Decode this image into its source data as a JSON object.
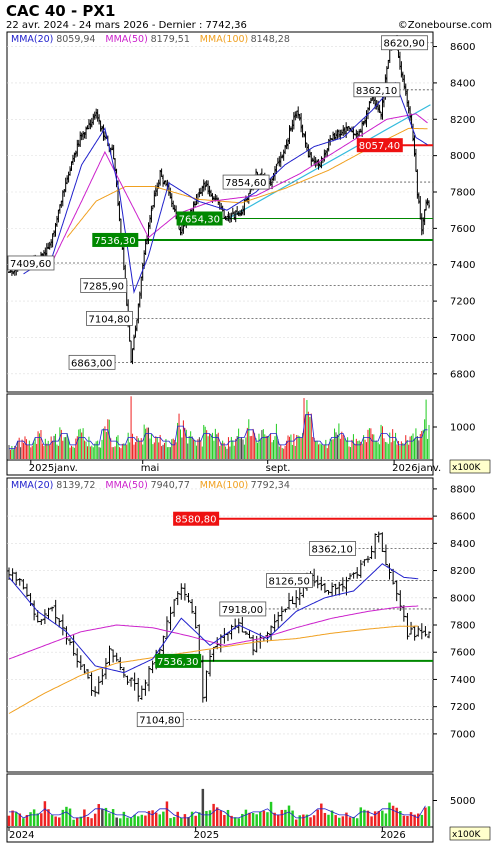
{
  "header": {
    "title": "CAC 40 - PX1",
    "subtitle": "22 avr. 2024 - 24 mars 2026 - Dernier : 7742,36",
    "source": "©Zonebourse.com"
  },
  "colors": {
    "mma20": "#2222cc",
    "mma50": "#cc22cc",
    "mma100": "#f0a020",
    "price": "#000000",
    "resistance": "#ee1111",
    "support": "#008800",
    "trend": "#33bbdd",
    "vol_up": "#22cc22",
    "vol_down": "#ee2222",
    "vol_flat": "#444444"
  },
  "chart_data": [
    {
      "type": "line",
      "name": "daily",
      "legend": [
        {
          "label": "MMA(20)",
          "value": "8059,94",
          "color": "#2222cc"
        },
        {
          "label": "MMA(50)",
          "value": "8179,51",
          "color": "#cc22cc"
        },
        {
          "label": "MMA(100)",
          "value": "8148,28",
          "color": "#f0a020"
        }
      ],
      "ylim": [
        6700,
        8680
      ],
      "yticks": [
        "6800",
        "7000",
        "7200",
        "7400",
        "7600",
        "7800",
        "8000",
        "8200",
        "8400",
        "8600"
      ],
      "x_labels": [
        {
          "text": "2025janv.",
          "i": 15
        },
        {
          "text": "mai",
          "i": 92
        },
        {
          "text": "sept.",
          "i": 178
        },
        {
          "text": "2026janv.",
          "i": 265
        }
      ],
      "n_points": 290,
      "price_path": [
        [
          0,
          7350
        ],
        [
          8,
          7420
        ],
        [
          20,
          7420
        ],
        [
          28,
          7500
        ],
        [
          40,
          7880
        ],
        [
          50,
          8120
        ],
        [
          60,
          8220
        ],
        [
          66,
          8100
        ],
        [
          72,
          8000
        ],
        [
          80,
          7300
        ],
        [
          84,
          6863
        ],
        [
          88,
          7100
        ],
        [
          92,
          7400
        ],
        [
          98,
          7700
        ],
        [
          104,
          7900
        ],
        [
          110,
          7800
        ],
        [
          118,
          7580
        ],
        [
          126,
          7700
        ],
        [
          134,
          7850
        ],
        [
          140,
          7780
        ],
        [
          150,
          7650
        ],
        [
          160,
          7700
        ],
        [
          170,
          7900
        ],
        [
          180,
          7850
        ],
        [
          190,
          8050
        ],
        [
          198,
          8250
        ],
        [
          206,
          8000
        ],
        [
          214,
          7950
        ],
        [
          222,
          8100
        ],
        [
          232,
          8150
        ],
        [
          240,
          8100
        ],
        [
          250,
          8320
        ],
        [
          256,
          8220
        ],
        [
          262,
          8600
        ],
        [
          266,
          8650
        ],
        [
          270,
          8450
        ],
        [
          274,
          8300
        ],
        [
          278,
          8100
        ],
        [
          281,
          7800
        ],
        [
          284,
          7600
        ],
        [
          287,
          7740
        ]
      ],
      "ma20_path": [
        [
          10,
          7350
        ],
        [
          30,
          7450
        ],
        [
          50,
          7950
        ],
        [
          66,
          8150
        ],
        [
          76,
          7800
        ],
        [
          86,
          7250
        ],
        [
          96,
          7450
        ],
        [
          110,
          7850
        ],
        [
          130,
          7750
        ],
        [
          150,
          7700
        ],
        [
          170,
          7800
        ],
        [
          190,
          7950
        ],
        [
          210,
          8050
        ],
        [
          230,
          8100
        ],
        [
          250,
          8250
        ],
        [
          266,
          8400
        ],
        [
          280,
          8100
        ],
        [
          288,
          8060
        ]
      ],
      "ma50_path": [
        [
          10,
          7400
        ],
        [
          30,
          7420
        ],
        [
          50,
          7750
        ],
        [
          66,
          8020
        ],
        [
          80,
          7800
        ],
        [
          96,
          7550
        ],
        [
          116,
          7680
        ],
        [
          140,
          7750
        ],
        [
          170,
          7780
        ],
        [
          200,
          7900
        ],
        [
          230,
          8050
        ],
        [
          260,
          8200
        ],
        [
          280,
          8230
        ],
        [
          288,
          8180
        ]
      ],
      "ma100_path": [
        [
          40,
          7550
        ],
        [
          60,
          7750
        ],
        [
          80,
          7830
        ],
        [
          100,
          7830
        ],
        [
          130,
          7760
        ],
        [
          160,
          7740
        ],
        [
          190,
          7820
        ],
        [
          220,
          7920
        ],
        [
          250,
          8050
        ],
        [
          275,
          8150
        ],
        [
          288,
          8148
        ]
      ],
      "volumes": [
        3,
        5,
        4,
        6,
        4,
        5,
        7,
        4,
        6,
        5,
        4,
        8,
        5,
        4,
        6,
        5,
        7,
        6,
        5,
        4,
        9,
        6,
        5,
        7,
        6,
        4,
        5,
        6,
        8,
        5,
        6,
        7,
        4,
        5,
        6,
        12,
        5,
        4,
        6,
        7,
        5,
        4,
        6,
        5,
        7,
        6,
        4,
        5,
        6,
        8
      ],
      "volume_scale": "x100K",
      "volume_tick": "1000",
      "levels": [
        {
          "label": "8620,90",
          "value": 8620.9,
          "kind": "dotted",
          "i": 257
        },
        {
          "label": "8362,10",
          "value": 8362.1,
          "kind": "dotted",
          "i": 238
        },
        {
          "label": "8057,40",
          "value": 8057.4,
          "kind": "resistance",
          "i": 240
        },
        {
          "label": "7854,60",
          "value": 7854.6,
          "kind": "dotted",
          "i": 148
        },
        {
          "label": "7654,30",
          "value": 7654.3,
          "kind": "thin-green",
          "i": 116
        },
        {
          "label": "7536,30",
          "value": 7536.3,
          "kind": "support",
          "i": 58
        },
        {
          "label": "7409,60",
          "value": 7409.6,
          "kind": "dotted",
          "i": 0
        },
        {
          "label": "7285,90",
          "value": 7285.9,
          "kind": "dotted",
          "i": 50
        },
        {
          "label": "7104,80",
          "value": 7104.8,
          "kind": "dotted",
          "i": 54
        },
        {
          "label": "6863,00",
          "value": 6863.0,
          "kind": "dotted",
          "i": 42
        }
      ],
      "trendline": [
        [
          150,
          7650
        ],
        [
          290,
          8280
        ]
      ]
    },
    {
      "type": "line",
      "name": "weekly",
      "legend": [
        {
          "label": "MMA(20)",
          "value": "8139,72",
          "color": "#2222cc"
        },
        {
          "label": "MMA(50)",
          "value": "7940,77",
          "color": "#cc22cc"
        },
        {
          "label": "MMA(100)",
          "value": "7792,34",
          "color": "#f0a020"
        }
      ],
      "ylim": [
        6720,
        8880
      ],
      "yticks": [
        "7000",
        "7200",
        "7400",
        "7600",
        "7800",
        "8000",
        "8200",
        "8400",
        "8600",
        "8800"
      ],
      "x_labels": [
        {
          "text": "2024",
          "i": 0
        },
        {
          "text": "2025",
          "i": 52
        },
        {
          "text": "2026",
          "i": 104
        }
      ],
      "n_points": 118,
      "price_path": [
        [
          0,
          8200
        ],
        [
          4,
          8100
        ],
        [
          8,
          7800
        ],
        [
          12,
          7950
        ],
        [
          16,
          7700
        ],
        [
          20,
          7500
        ],
        [
          24,
          7300
        ],
        [
          28,
          7600
        ],
        [
          32,
          7450
        ],
        [
          36,
          7300
        ],
        [
          40,
          7500
        ],
        [
          44,
          7800
        ],
        [
          48,
          8100
        ],
        [
          52,
          7800
        ],
        [
          54,
          7300
        ],
        [
          56,
          7600
        ],
        [
          60,
          7750
        ],
        [
          64,
          7800
        ],
        [
          68,
          7650
        ],
        [
          72,
          7750
        ],
        [
          76,
          7900
        ],
        [
          80,
          8000
        ],
        [
          84,
          8150
        ],
        [
          88,
          8050
        ],
        [
          92,
          8100
        ],
        [
          96,
          8150
        ],
        [
          100,
          8300
        ],
        [
          103,
          8500
        ],
        [
          105,
          8250
        ],
        [
          108,
          8050
        ],
        [
          111,
          7750
        ],
        [
          114,
          7742
        ]
      ],
      "ma20_path": [
        [
          0,
          8150
        ],
        [
          8,
          7900
        ],
        [
          16,
          7750
        ],
        [
          24,
          7500
        ],
        [
          32,
          7450
        ],
        [
          40,
          7550
        ],
        [
          48,
          7850
        ],
        [
          56,
          7650
        ],
        [
          64,
          7800
        ],
        [
          72,
          7700
        ],
        [
          80,
          7900
        ],
        [
          88,
          8000
        ],
        [
          96,
          8050
        ],
        [
          104,
          8250
        ],
        [
          110,
          8150
        ],
        [
          114,
          8140
        ]
      ],
      "ma50_path": [
        [
          0,
          7550
        ],
        [
          10,
          7650
        ],
        [
          20,
          7750
        ],
        [
          30,
          7800
        ],
        [
          40,
          7780
        ],
        [
          50,
          7720
        ],
        [
          60,
          7650
        ],
        [
          70,
          7700
        ],
        [
          80,
          7780
        ],
        [
          90,
          7850
        ],
        [
          100,
          7900
        ],
        [
          108,
          7930
        ],
        [
          114,
          7940
        ]
      ],
      "ma100_path": [
        [
          0,
          7150
        ],
        [
          10,
          7300
        ],
        [
          20,
          7430
        ],
        [
          30,
          7520
        ],
        [
          40,
          7560
        ],
        [
          50,
          7600
        ],
        [
          60,
          7640
        ],
        [
          70,
          7680
        ],
        [
          80,
          7700
        ],
        [
          90,
          7740
        ],
        [
          100,
          7770
        ],
        [
          108,
          7790
        ],
        [
          114,
          7792
        ]
      ],
      "volumes": [
        5,
        3,
        4,
        6,
        4,
        5,
        3,
        4,
        6,
        5,
        4,
        3,
        5,
        4,
        6,
        4,
        3,
        5,
        4,
        6,
        5,
        3,
        4,
        5,
        6,
        4,
        5,
        3,
        4,
        6,
        5,
        4,
        3,
        5,
        4,
        6,
        5,
        4,
        3,
        7
      ],
      "volume_scale": "x100K",
      "volume_tick": "5000",
      "levels": [
        {
          "label": "8580,80",
          "value": 8580.8,
          "kind": "resistance",
          "i": 46
        },
        {
          "label": "8362,10",
          "value": 8362.1,
          "kind": "dotted",
          "i": 84
        },
        {
          "label": "8126,50",
          "value": 8126.5,
          "kind": "dotted",
          "i": 72
        },
        {
          "label": "7918,00",
          "value": 7918.0,
          "kind": "dotted",
          "i": 59
        },
        {
          "label": "7536,30",
          "value": 7536.3,
          "kind": "support",
          "i": 41
        },
        {
          "label": "7104,80",
          "value": 7104.8,
          "kind": "dotted",
          "i": 36
        }
      ],
      "trendline": null
    }
  ]
}
